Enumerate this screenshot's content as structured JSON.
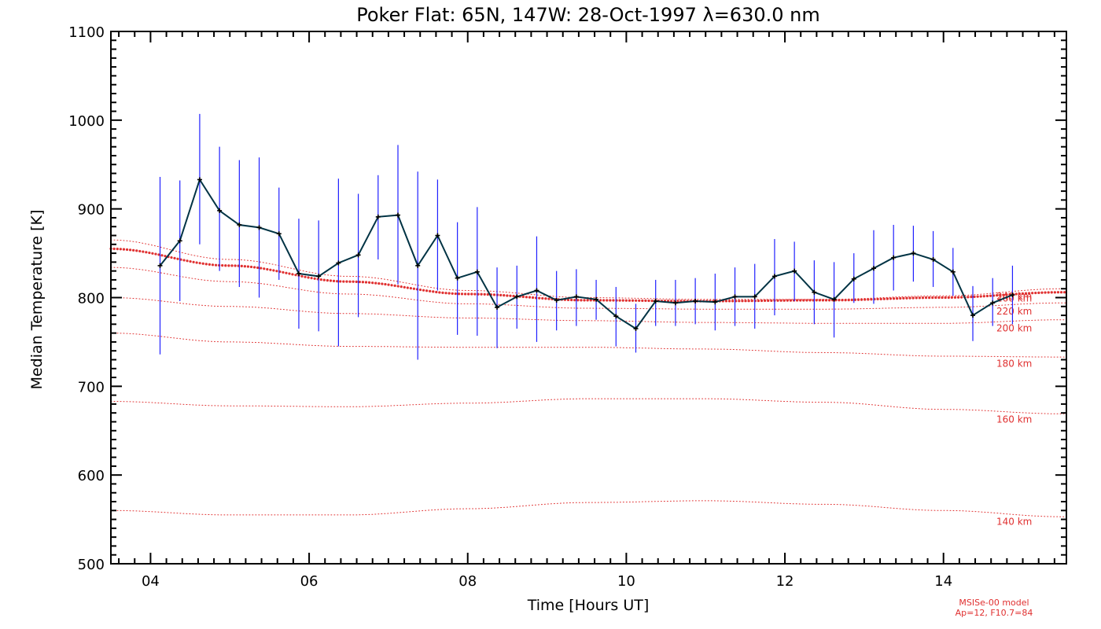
{
  "chart_data": {
    "type": "line",
    "title": "Poker Flat: 65N, 147W: 28-Oct-1997 λ=630.0 nm",
    "xlabel": "Time [Hours UT]",
    "ylabel": "Median Temperature [K]",
    "xlim": [
      3.5,
      15.55
    ],
    "ylim": [
      500,
      1100
    ],
    "x_ticks": [
      4,
      6,
      8,
      10,
      12,
      14
    ],
    "x_tick_labels": [
      "04",
      "06",
      "08",
      "10",
      "12",
      "14"
    ],
    "y_ticks": [
      500,
      600,
      700,
      800,
      900,
      1000,
      1100
    ],
    "y_tick_labels": [
      "500",
      "600",
      "700",
      "800",
      "900",
      "1000",
      "1100"
    ],
    "grid": false,
    "measurements": {
      "name": "Median temperature",
      "color": "#003344",
      "errorbar_color": "#2020ff",
      "x": [
        4.12,
        4.37,
        4.62,
        4.87,
        5.12,
        5.37,
        5.62,
        5.87,
        6.12,
        6.37,
        6.62,
        6.87,
        7.12,
        7.37,
        7.62,
        7.87,
        8.12,
        8.37,
        8.62,
        8.87,
        9.12,
        9.37,
        9.62,
        9.87,
        10.12,
        10.37,
        10.62,
        10.87,
        11.12,
        11.37,
        11.62,
        11.87,
        12.12,
        12.37,
        12.62,
        12.87,
        13.12,
        13.37,
        13.62,
        13.87,
        14.12,
        14.37,
        14.62,
        14.87
      ],
      "y": [
        836,
        864,
        933,
        898,
        882,
        879,
        872,
        827,
        824,
        839,
        848,
        891,
        893,
        836,
        870,
        822,
        829,
        789,
        801,
        808,
        797,
        801,
        798,
        779,
        765,
        796,
        794,
        796,
        795,
        801,
        801,
        824,
        830,
        806,
        798,
        821,
        833,
        845,
        850,
        843,
        829,
        780,
        794,
        803
      ],
      "err_low": [
        736,
        796,
        860,
        830,
        812,
        800,
        820,
        765,
        762,
        745,
        778,
        843,
        815,
        730,
        808,
        758,
        757,
        743,
        765,
        750,
        763,
        768,
        775,
        745,
        738,
        768,
        768,
        770,
        763,
        768,
        765,
        780,
        796,
        770,
        755,
        794,
        793,
        808,
        818,
        812,
        802,
        751,
        768,
        770
      ],
      "err_high": [
        936,
        932,
        1007,
        970,
        955,
        958,
        924,
        889,
        887,
        934,
        917,
        938,
        972,
        942,
        933,
        885,
        902,
        834,
        836,
        869,
        830,
        832,
        820,
        812,
        793,
        820,
        820,
        822,
        827,
        834,
        838,
        866,
        863,
        842,
        840,
        850,
        876,
        882,
        881,
        875,
        856,
        813,
        822,
        836
      ]
    },
    "model_series": [
      {
        "name": "260 km",
        "x": [
          3.5,
          5,
          6.5,
          8,
          9.5,
          11,
          12.5,
          14,
          15.5
        ],
        "y": [
          865,
          843,
          824,
          808,
          800,
          798,
          798,
          802,
          810
        ]
      },
      {
        "name": "240 km",
        "x": [
          3.5,
          5,
          6.5,
          8,
          9.5,
          11,
          12.5,
          14,
          15.5
        ],
        "y": [
          855,
          836,
          818,
          804,
          797,
          796,
          797,
          800,
          806
        ]
      },
      {
        "name": "220 km",
        "x": [
          3.5,
          5,
          6.5,
          8,
          9.5,
          11,
          12.5,
          14,
          15.5
        ],
        "y": [
          834,
          818,
          804,
          793,
          788,
          787,
          787,
          789,
          794
        ]
      },
      {
        "name": "200 km",
        "x": [
          3.5,
          5,
          6.5,
          8,
          9.5,
          11,
          12.5,
          14,
          15.5
        ],
        "y": [
          800,
          790,
          782,
          777,
          774,
          772,
          771,
          771,
          775
        ]
      },
      {
        "name": "180 km",
        "x": [
          3.5,
          5,
          6.5,
          8,
          9.5,
          11,
          12.5,
          14,
          15.5
        ],
        "y": [
          760,
          750,
          745,
          744,
          744,
          742,
          738,
          734,
          733
        ]
      },
      {
        "name": "160 km",
        "x": [
          3.5,
          5,
          6.5,
          8,
          9.5,
          11,
          12.5,
          14,
          15.5
        ],
        "y": [
          683,
          678,
          677,
          681,
          686,
          686,
          682,
          674,
          669
        ]
      },
      {
        "name": "140 km",
        "x": [
          3.5,
          5,
          6.5,
          8,
          9.5,
          11,
          12.5,
          14,
          15.5
        ],
        "y": [
          560,
          555,
          555,
          562,
          569,
          571,
          567,
          560,
          553
        ]
      }
    ],
    "highlighted_model": "240 km",
    "model_color": "#e03030",
    "model_note_line1": "MSISe-00 model",
    "model_note_line2": "Ap=12, F10.7=84"
  }
}
